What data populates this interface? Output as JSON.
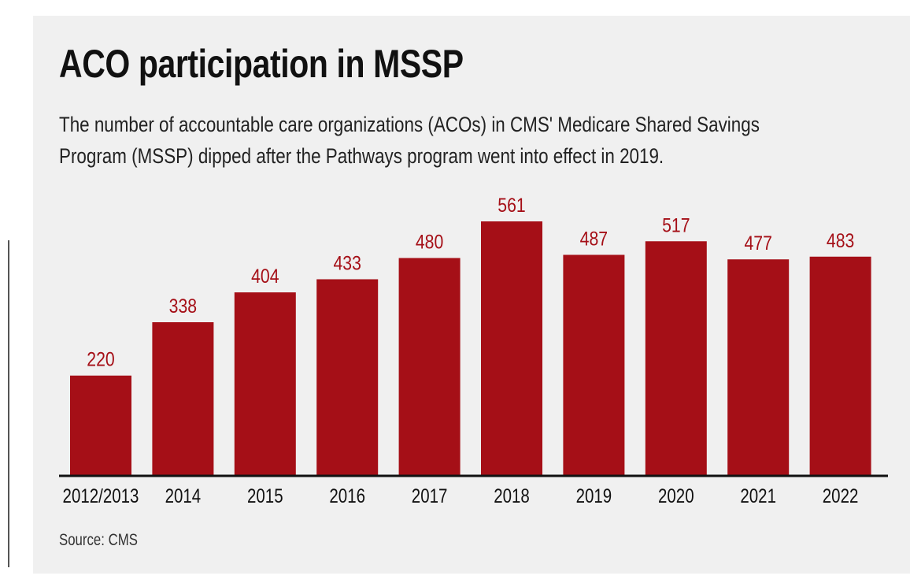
{
  "chart_data": {
    "type": "bar",
    "title": "ACO participation in MSSP",
    "subtitle": [
      "The number of accountable care organizations (ACOs) in CMS' Medicare Shared Savings",
      "Program (MSSP) dipped after the Pathways program went into effect in 2019."
    ],
    "categories": [
      "2012/2013",
      "2014",
      "2015",
      "2016",
      "2017",
      "2018",
      "2019",
      "2020",
      "2021",
      "2022"
    ],
    "values": [
      220,
      338,
      404,
      433,
      480,
      561,
      487,
      517,
      477,
      483
    ],
    "xlabel": "",
    "ylabel": "",
    "ylim": [
      0,
      561
    ],
    "grid": false,
    "legend": "none",
    "source": "Source: CMS",
    "colors": {
      "bar": "#a50f17",
      "label": "#a50f17",
      "axis": "#111111",
      "background": "#f0f0f0"
    }
  }
}
